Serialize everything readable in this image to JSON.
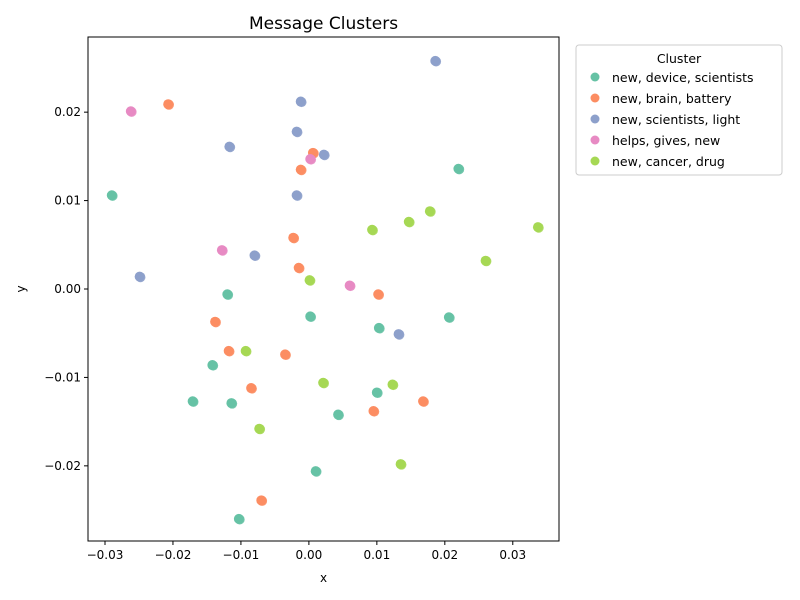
{
  "chart_data": {
    "type": "scatter",
    "title": "Message Clusters",
    "xlabel": "x",
    "ylabel": "y",
    "xlim": [
      -0.0325,
      0.0368
    ],
    "ylim": [
      -0.0285,
      0.0285
    ],
    "xticks": [
      -0.03,
      -0.02,
      -0.01,
      0.0,
      0.01,
      0.02,
      0.03
    ],
    "xtick_labels": [
      "−0.03",
      "−0.02",
      "−0.01",
      "0.00",
      "0.01",
      "0.02",
      "0.03"
    ],
    "yticks": [
      -0.02,
      -0.01,
      0.0,
      0.01,
      0.02
    ],
    "ytick_labels": [
      "−0.02",
      "−0.01",
      "0.00",
      "0.01",
      "0.02"
    ],
    "grid": false,
    "legend": {
      "title": "Cluster",
      "placement": "outside-right-top"
    },
    "series": [
      {
        "name": "new, device, scientists",
        "color": "#66c2a5",
        "points": [
          [
            -0.029,
            0.0106
          ],
          [
            0.022,
            0.0136
          ],
          [
            -0.012,
            -0.0006
          ],
          [
            0.0002,
            -0.0031
          ],
          [
            0.0103,
            -0.0044
          ],
          [
            0.0206,
            -0.0032
          ],
          [
            -0.0142,
            -0.0086
          ],
          [
            -0.0171,
            -0.0127
          ],
          [
            -0.0114,
            -0.0129
          ],
          [
            0.01,
            -0.0117
          ],
          [
            0.0043,
            -0.0142
          ],
          [
            0.001,
            -0.0206
          ],
          [
            -0.0103,
            -0.026
          ]
        ]
      },
      {
        "name": "new, brain, battery",
        "color": "#fc8d62",
        "points": [
          [
            -0.0207,
            0.0209
          ],
          [
            0.0006,
            0.0154
          ],
          [
            -0.0012,
            0.0135
          ],
          [
            -0.0023,
            0.0058
          ],
          [
            -0.0015,
            0.0024
          ],
          [
            0.0102,
            -0.0006
          ],
          [
            -0.0138,
            -0.0037
          ],
          [
            -0.0118,
            -0.007
          ],
          [
            -0.0035,
            -0.0074
          ],
          [
            -0.0085,
            -0.0112
          ],
          [
            0.0095,
            -0.0138
          ],
          [
            0.0168,
            -0.0127
          ],
          [
            -0.007,
            -0.0239
          ]
        ]
      },
      {
        "name": "new, scientists, light",
        "color": "#8da0cb",
        "points": [
          [
            0.0186,
            0.0258
          ],
          [
            -0.0012,
            0.0212
          ],
          [
            -0.0018,
            0.0178
          ],
          [
            -0.0117,
            0.0161
          ],
          [
            0.0022,
            0.0152
          ],
          [
            -0.0018,
            0.0106
          ],
          [
            -0.008,
            0.0038
          ],
          [
            -0.0249,
            0.0014
          ],
          [
            0.0132,
            -0.0051
          ]
        ]
      },
      {
        "name": "helps, gives, new",
        "color": "#e78ac3",
        "points": [
          [
            -0.0262,
            0.0201
          ],
          [
            0.0002,
            0.0147
          ],
          [
            -0.0128,
            0.0044
          ],
          [
            0.006,
            0.0004
          ]
        ]
      },
      {
        "name": "new, cancer, drug",
        "color": "#a6d854",
        "points": [
          [
            0.0178,
            0.0088
          ],
          [
            0.0147,
            0.0076
          ],
          [
            0.0093,
            0.0067
          ],
          [
            0.0337,
            0.007
          ],
          [
            0.026,
            0.0032
          ],
          [
            0.0001,
            0.001
          ],
          [
            -0.0093,
            -0.007
          ],
          [
            0.0021,
            -0.0106
          ],
          [
            0.0123,
            -0.0108
          ],
          [
            -0.0073,
            -0.0158
          ],
          [
            0.0135,
            -0.0198
          ]
        ]
      }
    ]
  }
}
